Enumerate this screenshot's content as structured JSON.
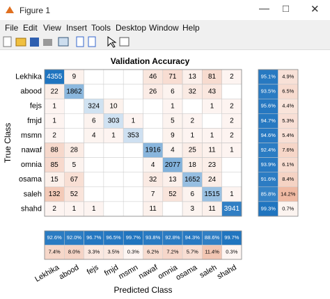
{
  "window": {
    "title": "Figure 1",
    "menu": [
      "File",
      "Edit",
      "View",
      "Insert",
      "Tools",
      "Desktop",
      "Window",
      "Help"
    ]
  },
  "chart_data": {
    "type": "confusion",
    "title": "Validation Accuracy",
    "ylabel": "True Class",
    "xlabel": "Predicted Class",
    "categories": [
      "Lekhika",
      "abood",
      "fejs",
      "fmjd",
      "msmn",
      "nawaf",
      "omnia",
      "osama",
      "saleh",
      "shahd"
    ],
    "diagonal_color": "#1f74bf",
    "offdiagonal_color": "#d9541a",
    "matrix": [
      [
        4355,
        9,
        null,
        null,
        null,
        46,
        71,
        13,
        81,
        2
      ],
      [
        22,
        1862,
        null,
        null,
        null,
        26,
        6,
        32,
        43,
        null
      ],
      [
        1,
        null,
        324,
        10,
        null,
        null,
        1,
        null,
        1,
        2
      ],
      [
        1,
        null,
        6,
        303,
        1,
        null,
        5,
        2,
        null,
        2
      ],
      [
        2,
        null,
        4,
        1,
        353,
        null,
        9,
        1,
        1,
        2
      ],
      [
        88,
        28,
        null,
        null,
        null,
        1916,
        4,
        25,
        11,
        1
      ],
      [
        85,
        5,
        null,
        null,
        null,
        4,
        2077,
        18,
        23,
        null
      ],
      [
        15,
        67,
        null,
        null,
        null,
        32,
        13,
        1652,
        24,
        null
      ],
      [
        132,
        52,
        null,
        null,
        null,
        7,
        52,
        6,
        1515,
        1
      ],
      [
        2,
        1,
        1,
        null,
        null,
        11,
        null,
        3,
        11,
        3941
      ]
    ],
    "row_correct": {
      "values": [
        95.1,
        93.5,
        95.6,
        94.7,
        94.6,
        92.4,
        93.9,
        91.6,
        85.8,
        99.3
      ],
      "value_labels": [
        "95.1%",
        "93.5%",
        "95.6%",
        "94.7%",
        "94.6%",
        "92.4%",
        "93.9%",
        "91.6%",
        "85.8%",
        "99.3%"
      ]
    },
    "row_incorrect": {
      "values": [
        4.9,
        6.5,
        4.4,
        5.3,
        5.4,
        7.6,
        6.1,
        8.4,
        14.2,
        0.7
      ],
      "value_labels": [
        "4.9%",
        "6.5%",
        "4.4%",
        "5.3%",
        "5.4%",
        "7.6%",
        "6.1%",
        "8.4%",
        "14.2%",
        "0.7%"
      ]
    },
    "col_correct": {
      "values": [
        92.6,
        92.0,
        96.7,
        96.5,
        99.7,
        93.8,
        92.8,
        94.3,
        88.6,
        99.7
      ],
      "value_labels": [
        "92.6%",
        "92.0%",
        "96.7%",
        "96.5%",
        "99.7%",
        "93.8%",
        "92.8%",
        "94.3%",
        "88.6%",
        "99.7%"
      ]
    },
    "col_incorrect": {
      "values": [
        7.4,
        8.0,
        3.3,
        3.5,
        0.3,
        6.2,
        7.2,
        5.7,
        11.4,
        0.3
      ],
      "value_labels": [
        "7.4%",
        "8.0%",
        "3.3%",
        "3.5%",
        "0.3%",
        "6.2%",
        "7.2%",
        "5.7%",
        "11.4%",
        "0.3%"
      ]
    }
  }
}
